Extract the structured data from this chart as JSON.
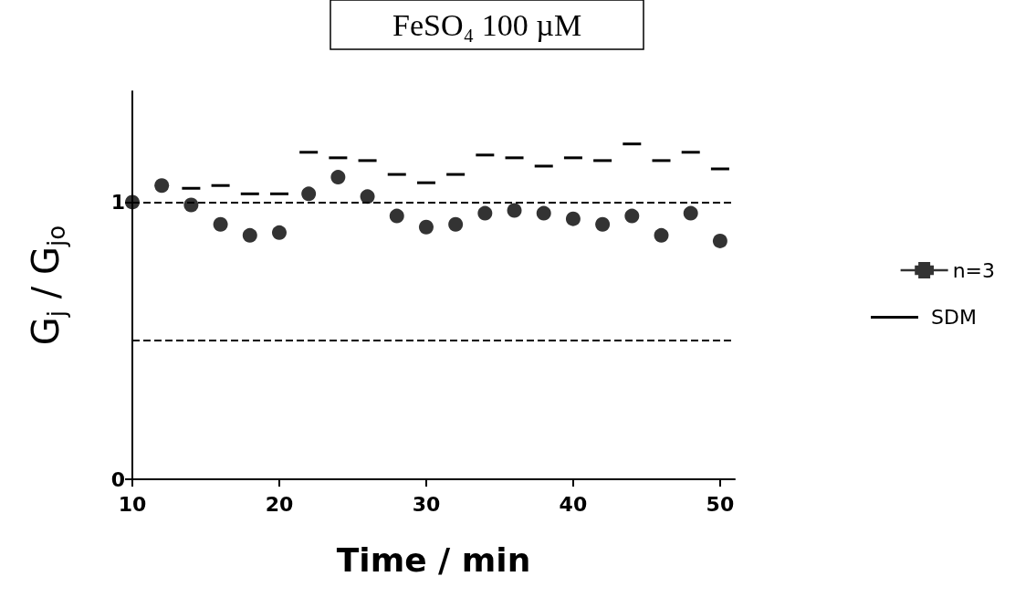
{
  "chart_data": {
    "type": "scatter",
    "title": "FeSO₄ 100 µM",
    "xlabel": "Time / min",
    "ylabel": "G$_{j}$ / G$_{jo}$",
    "x": [
      10,
      12,
      14,
      16,
      18,
      20,
      22,
      24,
      26,
      28,
      30,
      32,
      34,
      36,
      38,
      40,
      42,
      44,
      46,
      48,
      50
    ],
    "series": [
      {
        "name": "n=3",
        "color": "#000000",
        "values": [
          1.0,
          1.06,
          0.99,
          0.92,
          0.88,
          0.89,
          1.03,
          1.09,
          1.02,
          0.95,
          0.91,
          0.92,
          0.96,
          0.97,
          0.96,
          0.94,
          0.92,
          0.95,
          0.88,
          0.96,
          0.86
        ],
        "errors": [
          null,
          null,
          [
            0.99,
            1.05
          ],
          [
            0.92,
            1.06
          ],
          [
            0.88,
            1.03
          ],
          [
            0.89,
            1.03
          ],
          [
            1.03,
            1.18
          ],
          [
            1.09,
            1.16
          ],
          [
            1.02,
            1.15
          ],
          [
            0.95,
            1.1
          ],
          [
            0.91,
            1.07
          ],
          [
            0.92,
            1.1
          ],
          [
            0.96,
            1.17
          ],
          [
            0.97,
            1.16
          ],
          [
            0.96,
            1.13
          ],
          [
            0.94,
            1.16
          ],
          [
            0.92,
            1.15
          ],
          [
            0.95,
            1.21
          ],
          [
            0.88,
            1.15
          ],
          [
            0.96,
            1.18
          ],
          [
            0.86,
            1.12
          ]
        ]
      }
    ],
    "marker": "circle",
    "annotations": [
      "SDM"
    ],
    "xlim": [
      10,
      51
    ],
    "xticks": [
      10,
      20,
      30,
      40,
      50
    ],
    "ylim": [
      0,
      1.4
    ],
    "yticks": [
      0,
      1
    ],
    "ref_lines": [
      {
        "axis": "y",
        "value": 1,
        "line_style": "dashed"
      },
      {
        "axis": "y",
        "value": 0.5,
        "line_style": "dashed"
      }
    ],
    "grid": false,
    "legend": "right"
  }
}
